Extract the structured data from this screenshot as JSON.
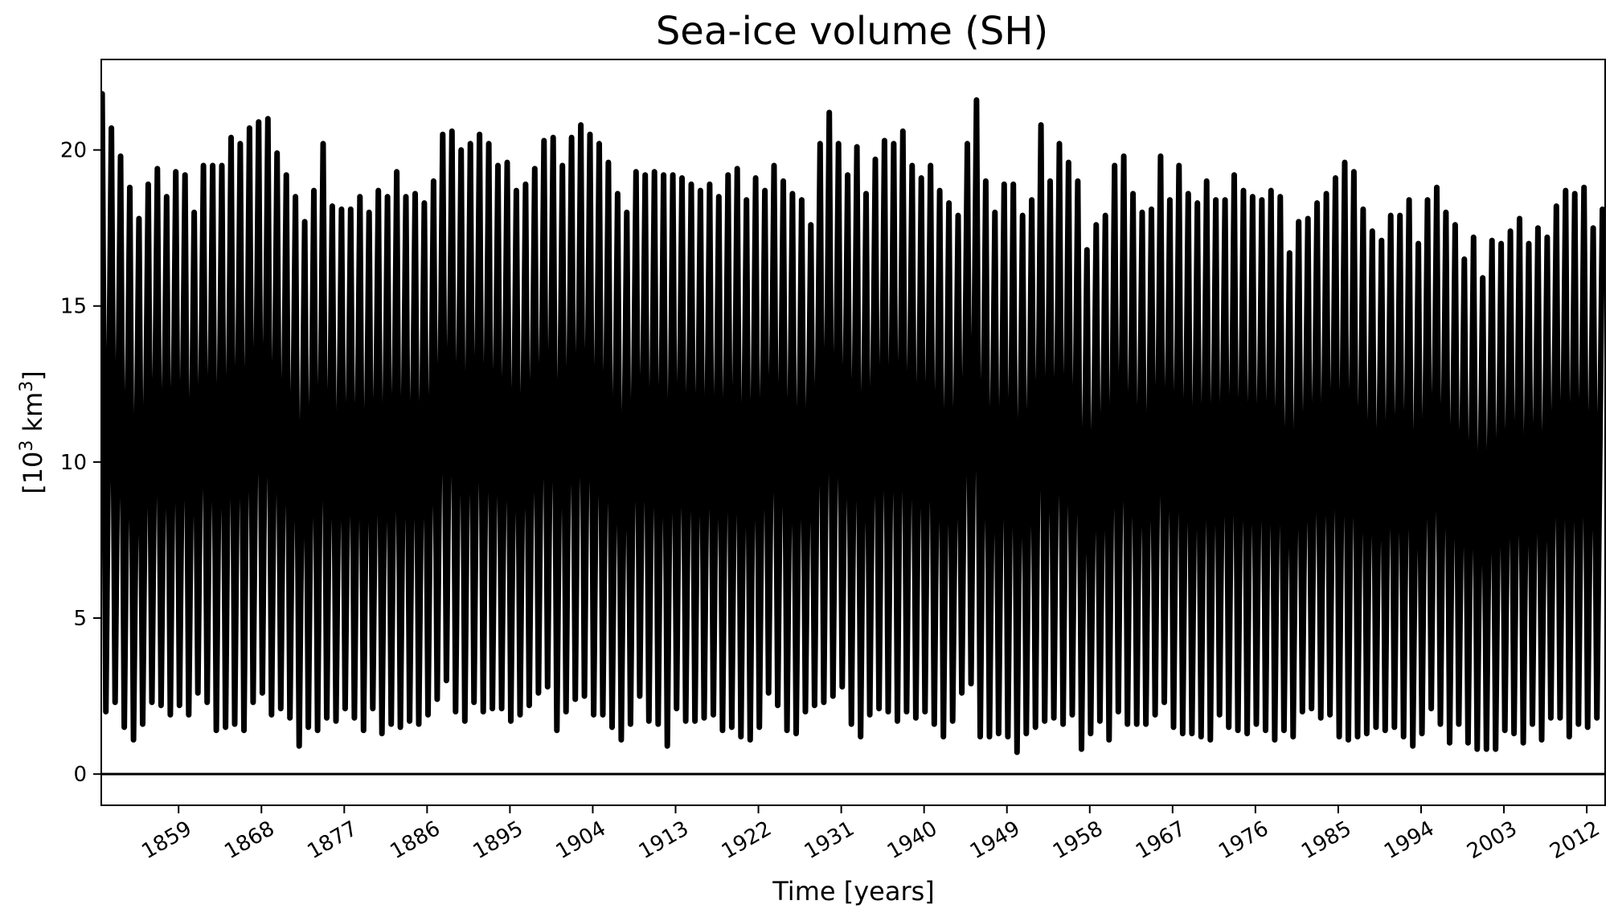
{
  "chart_data": {
    "type": "line",
    "title": "Sea-ice volume (SH)",
    "xlabel": "Time [years]",
    "ylabel_base": "[10",
    "ylabel_sup": "3",
    "ylabel_rest": " km",
    "ylabel_sup2": "3",
    "ylabel_end": "]",
    "xlim": [
      1850.6,
      2014.0
    ],
    "ylim": [
      -1.0,
      22.9
    ],
    "x_tick_values": [
      1859,
      1868,
      1877,
      1886,
      1895,
      1904,
      1913,
      1922,
      1931,
      1940,
      1949,
      1958,
      1967,
      1976,
      1985,
      1994,
      2003,
      2012
    ],
    "x_tick_labels": [
      "1859",
      "1868",
      "1877",
      "1886",
      "1895",
      "1904",
      "1913",
      "1922",
      "1931",
      "1940",
      "1949",
      "1958",
      "1967",
      "1976",
      "1985",
      "1994",
      "2003",
      "2012"
    ],
    "y_tick_values": [
      0,
      5,
      10,
      15,
      20
    ],
    "y_tick_labels": [
      "0",
      "5",
      "10",
      "15",
      "20"
    ],
    "reference_line": 0,
    "grid": false,
    "series": [
      {
        "color": "#000000",
        "annual_max": [
          21.8,
          20.7,
          19.8,
          18.8,
          17.8,
          18.9,
          19.4,
          18.5,
          19.3,
          19.2,
          18.0,
          19.5,
          19.5,
          19.5,
          20.4,
          20.2,
          20.7,
          20.9,
          21.0,
          19.9,
          19.2,
          18.5,
          17.7,
          18.7,
          20.2,
          18.2,
          18.1,
          18.1,
          18.5,
          18.0,
          18.7,
          18.5,
          19.3,
          18.5,
          18.6,
          18.3,
          19.0,
          20.5,
          20.6,
          20.0,
          20.2,
          20.5,
          20.2,
          19.5,
          19.6,
          18.7,
          18.9,
          19.4,
          20.3,
          20.4,
          19.5,
          20.4,
          20.8,
          20.5,
          20.2,
          19.6,
          18.6,
          18.0,
          19.3,
          19.2,
          19.3,
          19.2,
          19.2,
          19.1,
          18.9,
          18.7,
          18.9,
          18.5,
          19.2,
          19.4,
          18.4,
          19.1,
          18.7,
          19.5,
          19.0,
          18.6,
          18.4,
          17.6,
          20.2,
          21.2,
          20.2,
          19.2,
          20.1,
          18.6,
          19.7,
          20.3,
          20.2,
          20.6,
          19.5,
          19.1,
          19.5,
          18.7,
          18.3,
          17.9,
          20.2,
          21.6,
          19.0,
          18.0,
          18.9,
          18.9,
          17.9,
          18.4,
          20.8,
          19.0,
          20.2,
          19.6,
          19.0,
          16.8,
          17.6,
          17.9,
          19.5,
          19.8,
          18.6,
          18.0,
          18.1,
          19.8,
          18.4,
          19.5,
          18.6,
          18.3,
          19.0,
          18.4,
          18.4,
          19.2,
          18.7,
          18.5,
          18.4,
          18.7,
          18.5,
          16.7,
          17.7,
          17.8,
          18.3,
          18.6,
          19.1,
          19.6,
          19.3,
          18.1,
          17.4,
          17.1,
          17.9,
          17.9,
          18.4,
          17.0,
          18.4,
          18.8,
          18.0,
          17.6,
          16.5,
          17.2,
          15.9,
          17.1,
          17.0,
          17.4,
          17.8,
          17.0,
          17.5,
          17.2,
          18.2,
          18.7,
          18.6,
          18.8,
          17.5,
          18.1
        ],
        "annual_min": [
          2.4,
          2.0,
          2.3,
          1.5,
          1.1,
          1.6,
          2.3,
          2.2,
          1.9,
          2.2,
          1.9,
          2.6,
          2.3,
          1.4,
          1.5,
          1.6,
          1.4,
          2.3,
          2.6,
          1.9,
          2.1,
          1.8,
          0.9,
          1.5,
          1.4,
          1.8,
          1.7,
          2.1,
          1.8,
          1.4,
          2.1,
          1.3,
          1.6,
          1.5,
          1.7,
          1.6,
          1.9,
          2.4,
          3.0,
          2.0,
          1.7,
          2.3,
          2.0,
          2.1,
          2.1,
          1.7,
          1.9,
          2.2,
          2.6,
          2.8,
          1.4,
          2.0,
          2.4,
          2.5,
          1.9,
          1.9,
          1.5,
          1.1,
          1.6,
          2.5,
          1.7,
          1.6,
          0.9,
          2.1,
          1.7,
          1.7,
          1.8,
          1.9,
          1.4,
          1.5,
          1.2,
          1.1,
          1.5,
          2.6,
          2.2,
          1.4,
          1.3,
          2.0,
          2.2,
          2.3,
          2.5,
          2.8,
          1.6,
          1.2,
          1.9,
          2.1,
          2.0,
          1.7,
          2.0,
          1.8,
          2.0,
          1.6,
          1.2,
          1.7,
          2.6,
          2.9,
          1.2,
          1.2,
          1.3,
          1.2,
          0.7,
          1.3,
          1.5,
          1.7,
          1.8,
          1.6,
          1.9,
          0.8,
          1.3,
          1.7,
          1.1,
          2.0,
          1.6,
          1.6,
          1.6,
          1.9,
          2.3,
          1.5,
          1.3,
          1.3,
          1.2,
          1.1,
          1.9,
          1.5,
          1.4,
          1.3,
          1.6,
          1.4,
          1.1,
          1.4,
          1.2,
          2.0,
          2.1,
          1.8,
          1.9,
          1.2,
          1.1,
          1.2,
          1.3,
          1.5,
          1.4,
          1.5,
          1.2,
          0.9,
          1.3,
          2.1,
          1.6,
          1.0,
          1.6,
          1.0,
          0.8,
          0.8,
          0.8,
          1.4,
          1.3,
          1.0,
          1.6,
          1.1,
          1.8,
          1.8,
          1.2,
          1.6,
          1.5,
          1.8
        ]
      }
    ]
  }
}
